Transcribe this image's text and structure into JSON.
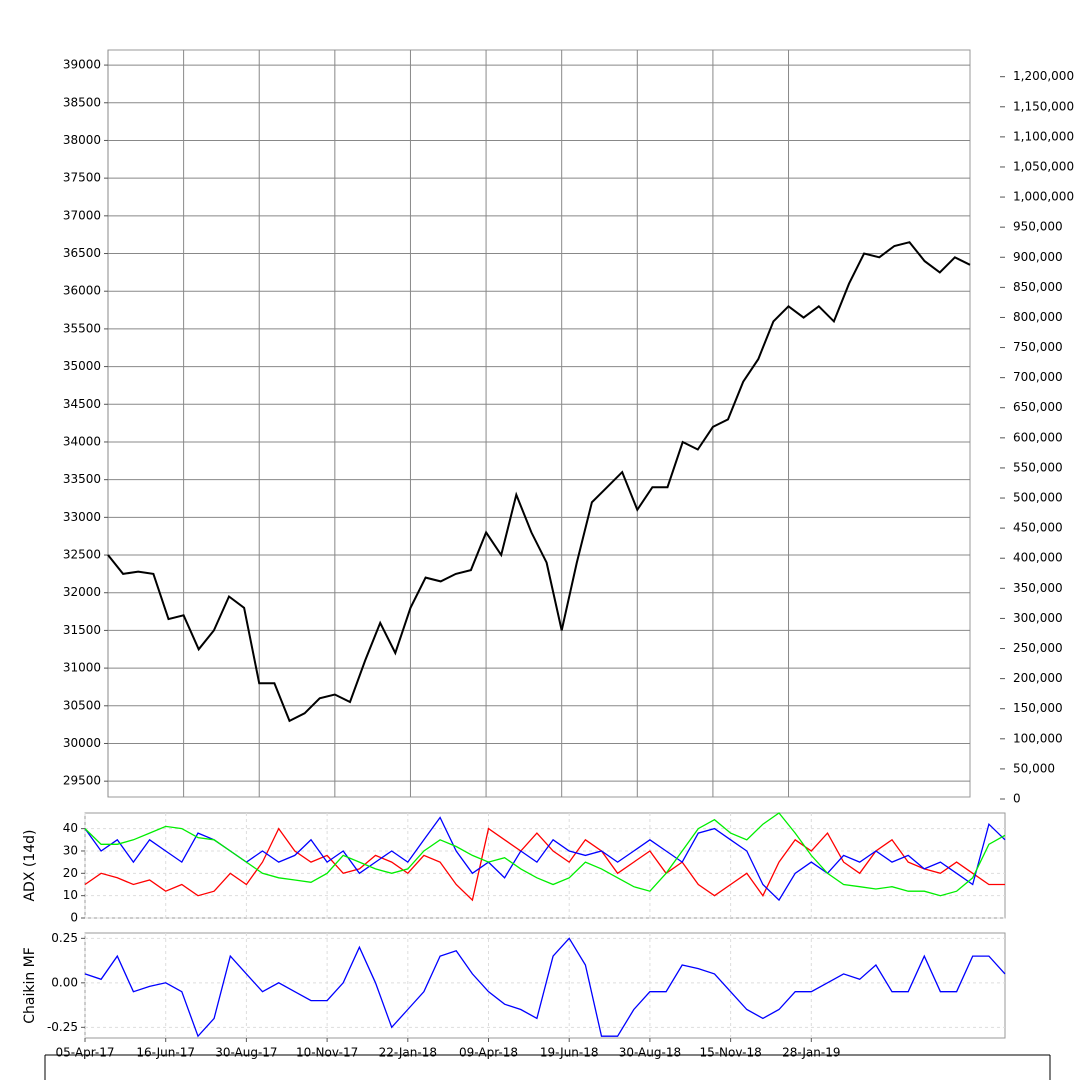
{
  "chart_data": [
    {
      "type": "line",
      "series": [
        {
          "color": "#000000",
          "values": [
            32500,
            32250,
            32280,
            32250,
            31650,
            31700,
            31250,
            31500,
            31950,
            31800,
            30800,
            30800,
            30300,
            30400,
            30600,
            30650,
            30550,
            31100,
            31600,
            31200,
            31800,
            32200,
            32150,
            32250,
            32300,
            32800,
            32500,
            33300,
            32800,
            32400,
            31500,
            32400,
            33200,
            33400,
            33600,
            33100,
            33400,
            33400,
            34000,
            33900,
            34200,
            34300,
            34800,
            35100,
            35600,
            35800,
            35650,
            35800,
            35600,
            36100,
            36500,
            36450,
            36600,
            36650,
            36400,
            36250,
            36450,
            36350
          ]
        }
      ],
      "ylim": [
        29290,
        39200
      ],
      "yticks": [
        29500,
        30000,
        30500,
        31000,
        31500,
        32000,
        32500,
        33000,
        33500,
        34000,
        34500,
        35000,
        35500,
        36000,
        36500,
        37000,
        37500,
        38000,
        38500,
        39000
      ],
      "y2lim": [
        0,
        1241000
      ],
      "y2ticks": [
        0,
        {
          "value": 50000,
          "label": "50,000"
        },
        {
          "value": 100000,
          "label": "100,000"
        },
        {
          "value": 150000,
          "label": "150,000"
        },
        {
          "value": 200000,
          "label": "200,000"
        },
        {
          "value": 250000,
          "label": "250,000"
        },
        {
          "value": 300000,
          "label": "300,000"
        },
        {
          "value": 350000,
          "label": "350,000"
        },
        {
          "value": 400000,
          "label": "400,000"
        },
        {
          "value": 450000,
          "label": "450,000"
        },
        {
          "value": 500000,
          "label": "500,000"
        },
        {
          "value": 550000,
          "label": "550,000"
        },
        {
          "value": 600000,
          "label": "600,000"
        },
        {
          "value": 650000,
          "label": "650,000"
        },
        {
          "value": 700000,
          "label": "700,000"
        },
        {
          "value": 750000,
          "label": "750,000"
        },
        {
          "value": 800000,
          "label": "800,000"
        },
        {
          "value": 850000,
          "label": "850,000"
        },
        {
          "value": 900000,
          "label": "900,000"
        },
        {
          "value": 950000,
          "label": "950,000"
        },
        {
          "value": 1000000,
          "label": "1,000,000"
        },
        {
          "value": 1050000,
          "label": "1,050,000"
        },
        {
          "value": 1100000,
          "label": "1,100,000"
        },
        {
          "value": 1150000,
          "label": "1,150,000"
        },
        {
          "value": 1200000,
          "label": "1,200,000"
        }
      ],
      "grid": true
    },
    {
      "type": "line",
      "ylabel": "ADX (14d)",
      "series": [
        {
          "color": "#ff0000",
          "values": [
            15,
            20,
            18,
            15,
            17,
            12,
            15,
            10,
            12,
            20,
            15,
            25,
            40,
            30,
            25,
            28,
            20,
            22,
            28,
            25,
            20,
            28,
            25,
            15,
            8,
            40,
            35,
            30,
            38,
            30,
            25,
            35,
            30,
            20,
            25,
            30,
            20,
            25,
            15,
            10,
            15,
            20,
            10,
            25,
            35,
            30,
            38,
            25,
            20,
            30,
            35,
            25,
            22,
            20,
            25,
            20,
            15,
            15
          ]
        },
        {
          "color": "#0000ff",
          "values": [
            40,
            30,
            35,
            25,
            35,
            30,
            25,
            38,
            35,
            30,
            25,
            30,
            25,
            28,
            35,
            25,
            30,
            20,
            25,
            30,
            25,
            35,
            45,
            30,
            20,
            25,
            18,
            30,
            25,
            35,
            30,
            28,
            30,
            25,
            30,
            35,
            30,
            25,
            38,
            40,
            35,
            30,
            15,
            8,
            20,
            25,
            20,
            28,
            25,
            30,
            25,
            28,
            22,
            25,
            20,
            15,
            42,
            35
          ]
        },
        {
          "color": "#00ee00",
          "values": [
            40,
            33,
            33,
            35,
            38,
            41,
            40,
            36,
            35,
            30,
            25,
            20,
            18,
            17,
            16,
            20,
            28,
            25,
            22,
            20,
            22,
            30,
            35,
            32,
            28,
            25,
            27,
            22,
            18,
            15,
            18,
            25,
            22,
            18,
            14,
            12,
            20,
            30,
            40,
            44,
            38,
            35,
            42,
            47,
            38,
            28,
            20,
            15,
            14,
            13,
            14,
            12,
            12,
            10,
            12,
            18,
            33,
            37
          ]
        }
      ],
      "ylim": [
        0,
        47
      ],
      "yticks": [
        0,
        10,
        20,
        30,
        40
      ],
      "grid": true
    },
    {
      "type": "line",
      "ylabel": "Chaikin MF",
      "categories": [
        "05-Apr-17",
        null,
        null,
        null,
        null,
        "16-Jun-17",
        null,
        null,
        null,
        null,
        "30-Aug-17",
        null,
        null,
        null,
        null,
        "10-Nov-17",
        null,
        null,
        null,
        null,
        "22-Jan-18",
        null,
        null,
        null,
        null,
        "09-Apr-18",
        null,
        null,
        null,
        null,
        "19-Jun-18",
        null,
        null,
        null,
        null,
        "30-Aug-18",
        null,
        null,
        null,
        null,
        "15-Nov-18",
        null,
        null,
        null,
        null,
        "28-Jan-19",
        null,
        null,
        null,
        null,
        null,
        null,
        null,
        null,
        null,
        null,
        null,
        null
      ],
      "series": [
        {
          "color": "#0000ff",
          "values": [
            0.05,
            0.02,
            0.15,
            -0.05,
            -0.02,
            0,
            -0.05,
            -0.3,
            -0.2,
            0.15,
            0.05,
            -0.05,
            0,
            -0.05,
            -0.1,
            -0.1,
            0,
            0.2,
            0,
            -0.25,
            -0.15,
            -0.05,
            0.15,
            0.18,
            0.05,
            -0.05,
            -0.12,
            -0.15,
            -0.2,
            0.15,
            0.25,
            0.1,
            -0.3,
            -0.3,
            -0.15,
            -0.05,
            -0.05,
            0.1,
            0.08,
            0.05,
            -0.05,
            -0.15,
            -0.2,
            -0.15,
            -0.05,
            -0.05,
            0,
            0.05,
            0.02,
            0.1,
            -0.05,
            -0.05,
            0.15,
            -0.05,
            -0.05,
            0.15,
            0.15,
            0.05
          ]
        }
      ],
      "ylim": [
        -0.31,
        0.28
      ],
      "yticks": [
        {
          "value": -0.25,
          "label": "-0.25"
        },
        {
          "value": 0,
          "label": "0.00"
        },
        {
          "value": 0.25,
          "label": "0.25"
        }
      ],
      "grid": true
    }
  ]
}
